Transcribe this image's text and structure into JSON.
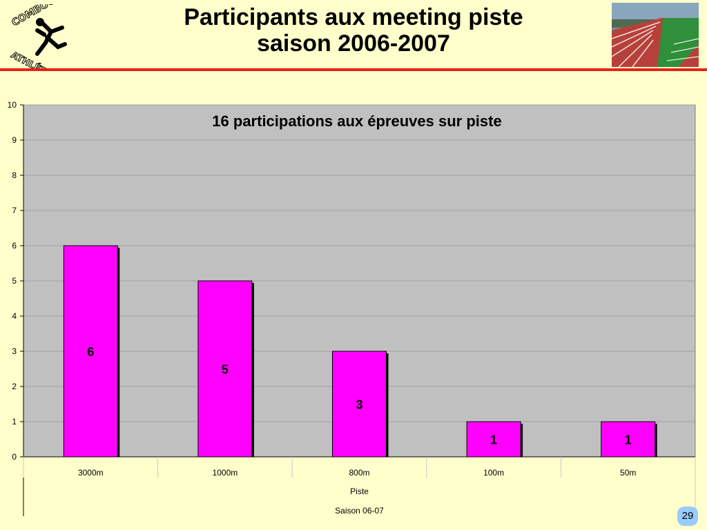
{
  "page": {
    "title_line1": "Participants aux meeting piste",
    "title_line2": "saison 2006-2007",
    "page_number": "29",
    "logo_text": "COMBOURG ATHLÉTISME"
  },
  "colors": {
    "background": "#ffffcc",
    "rule": "#e2231a",
    "plot_area": "#c0c0c0",
    "bar_fill": "#ff00ff",
    "bar_shadow": "#000000",
    "page_badge": "#99ccff"
  },
  "chart_data": {
    "type": "bar",
    "title": "16 participations aux épreuves sur piste",
    "categories": [
      "3000m",
      "1000m",
      "800m",
      "100m",
      "50m"
    ],
    "values": [
      6,
      5,
      3,
      1,
      1
    ],
    "data_labels": [
      "6",
      "5",
      "3",
      "1",
      "1"
    ],
    "group_label": "Piste",
    "season_label": "Saison 06-07",
    "ylim": [
      0,
      10
    ],
    "yticks": [
      0,
      1,
      2,
      3,
      4,
      5,
      6,
      7,
      8,
      9,
      10
    ],
    "grid": true,
    "legend": "none"
  }
}
